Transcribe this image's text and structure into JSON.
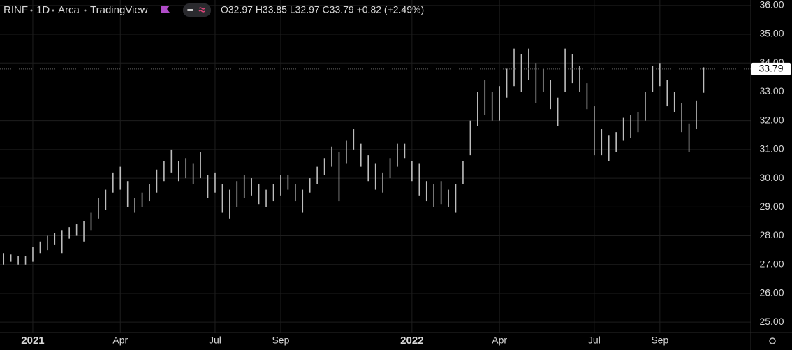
{
  "chart_data": {
    "type": "range",
    "symbol": "RINF",
    "interval": "1D",
    "exchange": "Arca",
    "source": "TradingView",
    "ohlc_text": "O32.97 H33.85 L32.97 C33.79 +0.82 (+2.49%)",
    "last_close": 33.79,
    "color": "#bdbdbd",
    "grid": true,
    "categories": [
      null,
      null,
      null,
      null,
      "2021",
      null,
      null,
      null,
      null,
      null,
      null,
      null,
      null,
      null,
      null,
      null,
      "Apr",
      null,
      null,
      null,
      null,
      null,
      null,
      null,
      null,
      null,
      null,
      null,
      null,
      "Jul",
      null,
      null,
      null,
      null,
      null,
      null,
      null,
      null,
      "Sep",
      null,
      null,
      null,
      null,
      null,
      null,
      null,
      null,
      null,
      null,
      null,
      null,
      null,
      null,
      null,
      null,
      null,
      "2022",
      null,
      null,
      null,
      null,
      null,
      null,
      null,
      null,
      null,
      null,
      null,
      "Apr",
      null,
      null,
      null,
      null,
      null,
      null,
      null,
      null,
      null,
      null,
      null,
      null,
      "Jul",
      null,
      null,
      null,
      null,
      null,
      null,
      null,
      null,
      "Sep",
      null,
      null,
      null,
      null,
      null,
      null
    ],
    "lows": [
      27.0,
      27.1,
      27.0,
      27.0,
      27.1,
      27.4,
      27.5,
      27.7,
      27.4,
      27.9,
      28.0,
      27.8,
      28.2,
      28.6,
      28.9,
      29.5,
      29.6,
      29.0,
      28.8,
      29.0,
      29.2,
      29.5,
      29.9,
      30.2,
      29.9,
      30.0,
      29.8,
      30.0,
      29.3,
      29.5,
      28.8,
      28.6,
      29.0,
      29.3,
      29.4,
      29.1,
      29.0,
      29.2,
      29.4,
      29.6,
      29.2,
      28.8,
      29.5,
      29.8,
      30.1,
      30.4,
      29.2,
      30.5,
      31.0,
      30.4,
      29.9,
      29.6,
      29.5,
      30.0,
      30.4,
      30.7,
      29.9,
      29.4,
      29.2,
      29.0,
      29.1,
      29.0,
      28.8,
      29.8,
      30.8,
      31.8,
      32.2,
      32.0,
      32.0,
      32.8,
      33.2,
      33.0,
      33.4,
      32.6,
      33.0,
      32.4,
      31.8,
      33.0,
      33.3,
      33.0,
      32.4,
      30.8,
      30.8,
      30.6,
      30.9,
      31.3,
      31.4,
      31.6,
      32.0,
      33.0,
      33.2,
      32.5,
      32.3,
      31.6,
      30.9,
      31.7,
      32.97
    ],
    "highs": [
      27.4,
      27.35,
      27.3,
      27.3,
      27.6,
      27.8,
      28.0,
      28.1,
      28.2,
      28.3,
      28.4,
      28.5,
      28.8,
      29.3,
      29.6,
      30.2,
      30.4,
      29.9,
      29.3,
      29.5,
      29.8,
      30.3,
      30.6,
      31.0,
      30.6,
      30.7,
      30.5,
      30.9,
      30.1,
      30.2,
      29.8,
      29.6,
      29.9,
      30.1,
      30.0,
      29.8,
      29.6,
      29.8,
      30.1,
      30.1,
      29.8,
      29.6,
      30.0,
      30.4,
      30.7,
      31.1,
      30.9,
      31.3,
      31.7,
      31.2,
      30.8,
      30.5,
      30.2,
      30.7,
      31.2,
      31.2,
      30.6,
      30.5,
      29.9,
      29.8,
      29.9,
      29.6,
      29.8,
      30.6,
      32.0,
      33.0,
      33.4,
      33.0,
      33.2,
      33.8,
      34.5,
      34.3,
      34.5,
      34.0,
      33.8,
      33.4,
      32.8,
      34.5,
      34.3,
      33.9,
      33.3,
      32.5,
      31.7,
      31.5,
      31.6,
      32.1,
      32.2,
      32.3,
      33.0,
      33.9,
      34.0,
      33.4,
      33.0,
      32.6,
      31.9,
      32.7,
      33.85
    ],
    "ylim": [
      24.64,
      36.19
    ],
    "yticks": [
      {
        "value": 25,
        "label": "25.00"
      },
      {
        "value": 26,
        "label": "26.00"
      },
      {
        "value": 27,
        "label": "27.00"
      },
      {
        "value": 28,
        "label": "28.00"
      },
      {
        "value": 29,
        "label": "29.00"
      },
      {
        "value": 30,
        "label": "30.00"
      },
      {
        "value": 31,
        "label": "31.00"
      },
      {
        "value": 32,
        "label": "32.00"
      },
      {
        "value": 33,
        "label": "33.00"
      },
      {
        "value": 34,
        "label": "34.00"
      },
      {
        "value": 35,
        "label": "35.00"
      },
      {
        "value": 36,
        "label": "36.00"
      }
    ]
  }
}
